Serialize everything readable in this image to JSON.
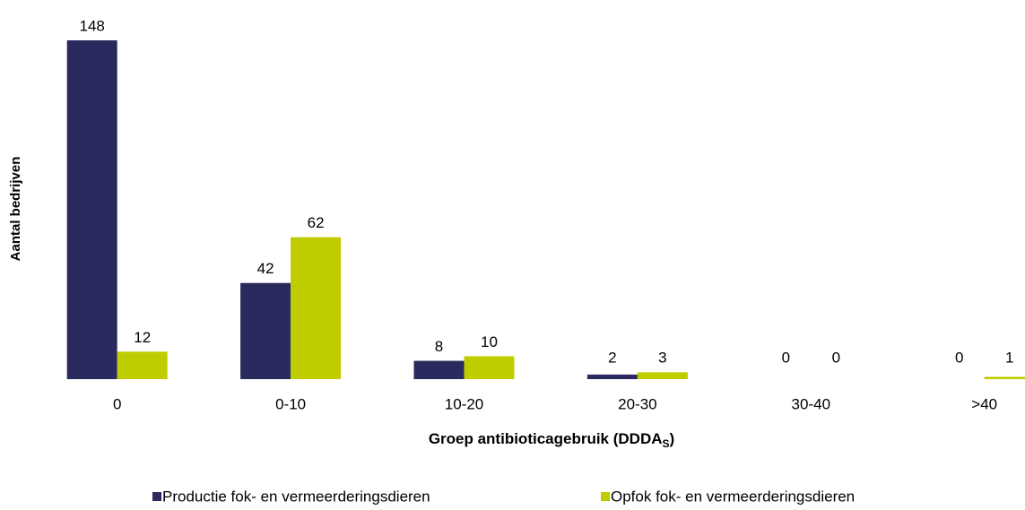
{
  "chart_data": {
    "type": "bar",
    "y_label": "Aantal bedrijven",
    "x_label": [
      "Groep antibioticagebruik (DDDA",
      "S",
      ")"
    ],
    "categories": [
      "0",
      "0-10",
      "10-20",
      "20-30",
      "30-40",
      ">40"
    ],
    "series": [
      {
        "name": "Productie fok- en vermeerderingsdieren",
        "color": "#2b2a5e",
        "values": [
          148,
          42,
          8,
          2,
          0,
          0
        ]
      },
      {
        "name": "Opfok fok- en vermeerderingsdieren",
        "color": "#bfcc00",
        "values": [
          12,
          62,
          10,
          3,
          0,
          1
        ]
      }
    ],
    "legend": "bottom"
  }
}
